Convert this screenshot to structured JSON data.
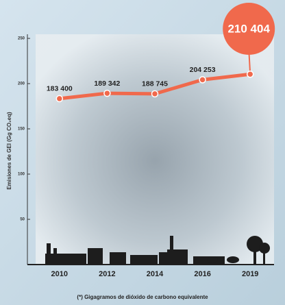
{
  "chart_data": {
    "type": "line",
    "y_axis_label": "Emisiones de GEI (Gg CO₂eq)",
    "footnote": "(*) Gigagramos de dióxido de carbono equivalente",
    "categories": [
      "2010",
      "2012",
      "2014",
      "2016",
      "2019"
    ],
    "values": [
      183.4,
      189.342,
      188.745,
      204.253,
      210.404
    ],
    "value_labels": [
      "183 400",
      "189 342",
      "188 745",
      "204 253",
      "210 404"
    ],
    "color": "#f0694c",
    "ylim": [
      0,
      250
    ],
    "yticks": [
      50,
      100,
      150,
      200,
      250
    ]
  }
}
